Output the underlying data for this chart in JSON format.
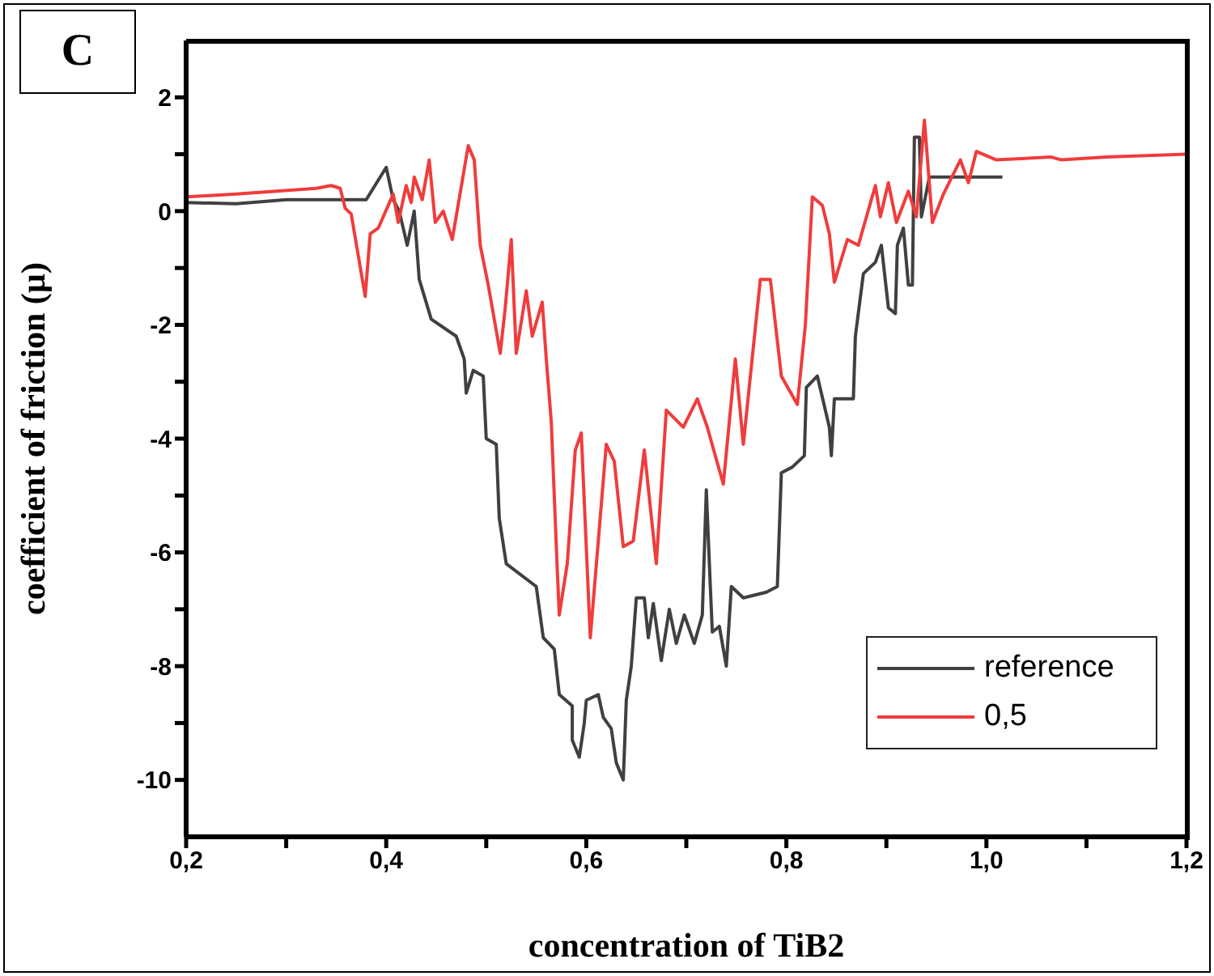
{
  "chart_data": {
    "type": "line",
    "xlabel": "concentration of TiB2",
    "ylabel": "coefficient of friction (µ)",
    "annotations": [
      "C"
    ],
    "xlim": [
      0.2,
      1.2
    ],
    "ylim": [
      -11,
      3
    ],
    "xticks": [
      {
        "value": 0.2,
        "label": "0,2"
      },
      {
        "value": 0.3,
        "label": null
      },
      {
        "value": 0.4,
        "label": "0,4"
      },
      {
        "value": 0.5,
        "label": null
      },
      {
        "value": 0.6,
        "label": "0,6"
      },
      {
        "value": 0.7,
        "label": null
      },
      {
        "value": 0.8,
        "label": "0,8"
      },
      {
        "value": 0.9,
        "label": null
      },
      {
        "value": 1.0,
        "label": "1,0"
      },
      {
        "value": 1.1,
        "label": null
      },
      {
        "value": 1.2,
        "label": "1,2"
      }
    ],
    "yticks": [
      -10,
      {
        "value": -9,
        "label": null
      },
      -8,
      {
        "value": -7,
        "label": null
      },
      -6,
      {
        "value": -5,
        "label": null
      },
      -4,
      {
        "value": -3,
        "label": null
      },
      -2,
      {
        "value": -1,
        "label": null
      },
      0,
      {
        "value": 1,
        "label": null
      },
      2
    ],
    "grid": false,
    "legend": "bottom right",
    "marker": "none",
    "line_style": "solid",
    "series": [
      {
        "name": "reference",
        "color": "#404040",
        "x": [
          0.2,
          0.25,
          0.3,
          0.38,
          0.4,
          0.407,
          0.413,
          0.421,
          0.428,
          0.433,
          0.445,
          0.47,
          0.478,
          0.48,
          0.487,
          0.497,
          0.5,
          0.51,
          0.513,
          0.52,
          0.55,
          0.557,
          0.568,
          0.573,
          0.586,
          0.586,
          0.593,
          0.598,
          0.6,
          0.612,
          0.617,
          0.625,
          0.63,
          0.637,
          0.64,
          0.645,
          0.65,
          0.658,
          0.662,
          0.667,
          0.675,
          0.683,
          0.69,
          0.698,
          0.708,
          0.716,
          0.72,
          0.724,
          0.726,
          0.733,
          0.74,
          0.745,
          0.757,
          0.78,
          0.791,
          0.795,
          0.806,
          0.818,
          0.82,
          0.831,
          0.843,
          0.845,
          0.848,
          0.867,
          0.869,
          0.877,
          0.889,
          0.895,
          0.902,
          0.909,
          0.911,
          0.917,
          0.922,
          0.926,
          0.928,
          0.933,
          0.935,
          0.943,
          1.016
        ],
        "values": [
          0.15,
          0.13,
          0.2,
          0.2,
          0.77,
          0.2,
          0.0,
          -0.6,
          0.0,
          -1.2,
          -1.9,
          -2.2,
          -2.6,
          -3.2,
          -2.8,
          -2.9,
          -4.0,
          -4.1,
          -5.4,
          -6.2,
          -6.6,
          -7.5,
          -7.7,
          -8.5,
          -8.7,
          -9.3,
          -9.6,
          -9.0,
          -8.6,
          -8.5,
          -8.9,
          -9.1,
          -9.7,
          -10.0,
          -8.6,
          -8.0,
          -6.8,
          -6.8,
          -7.5,
          -6.9,
          -7.9,
          -7.0,
          -7.6,
          -7.1,
          -7.6,
          -7.1,
          -4.9,
          -6.6,
          -7.4,
          -7.3,
          -8.0,
          -6.6,
          -6.8,
          -6.7,
          -6.6,
          -4.6,
          -4.5,
          -4.3,
          -3.1,
          -2.9,
          -3.8,
          -4.3,
          -3.3,
          -3.3,
          -2.2,
          -1.1,
          -0.9,
          -0.6,
          -1.7,
          -1.8,
          -0.6,
          -0.3,
          -1.3,
          -1.3,
          1.3,
          1.3,
          -0.1,
          0.6,
          0.6
        ]
      },
      {
        "name": "0,5",
        "color": "#f03c3c",
        "x": [
          0.2,
          0.25,
          0.33,
          0.345,
          0.354,
          0.359,
          0.365,
          0.379,
          0.384,
          0.392,
          0.407,
          0.412,
          0.42,
          0.425,
          0.428,
          0.436,
          0.443,
          0.449,
          0.457,
          0.466,
          0.482,
          0.488,
          0.494,
          0.502,
          0.514,
          0.519,
          0.525,
          0.53,
          0.54,
          0.546,
          0.556,
          0.56,
          0.565,
          0.571,
          0.573,
          0.581,
          0.589,
          0.595,
          0.604,
          0.612,
          0.62,
          0.628,
          0.637,
          0.647,
          0.658,
          0.67,
          0.68,
          0.697,
          0.711,
          0.721,
          0.737,
          0.749,
          0.757,
          0.774,
          0.784,
          0.795,
          0.811,
          0.819,
          0.826,
          0.836,
          0.843,
          0.848,
          0.861,
          0.872,
          0.889,
          0.894,
          0.902,
          0.91,
          0.922,
          0.93,
          0.938,
          0.946,
          0.957,
          0.974,
          0.982,
          0.99,
          1.01,
          1.065,
          1.075,
          1.12,
          1.2
        ],
        "values": [
          0.25,
          0.3,
          0.4,
          0.45,
          0.4,
          0.05,
          -0.05,
          -1.5,
          -0.4,
          -0.3,
          0.3,
          -0.2,
          0.45,
          0.15,
          0.6,
          0.2,
          0.9,
          -0.2,
          0.0,
          -0.5,
          1.15,
          0.9,
          -0.6,
          -1.3,
          -2.5,
          -1.7,
          -0.5,
          -2.5,
          -1.4,
          -2.2,
          -1.6,
          -2.6,
          -3.7,
          -6.3,
          -7.1,
          -6.2,
          -4.2,
          -3.9,
          -7.5,
          -5.8,
          -4.1,
          -4.4,
          -5.9,
          -5.8,
          -4.2,
          -6.2,
          -3.5,
          -3.8,
          -3.3,
          -3.8,
          -4.8,
          -2.6,
          -4.1,
          -1.2,
          -1.2,
          -2.9,
          -3.4,
          -2.0,
          0.25,
          0.1,
          -0.4,
          -1.25,
          -0.5,
          -0.6,
          0.45,
          -0.1,
          0.5,
          -0.2,
          0.35,
          -0.1,
          1.6,
          -0.2,
          0.3,
          0.9,
          0.5,
          1.05,
          0.9,
          0.95,
          0.9,
          0.95,
          1.0
        ]
      }
    ]
  }
}
